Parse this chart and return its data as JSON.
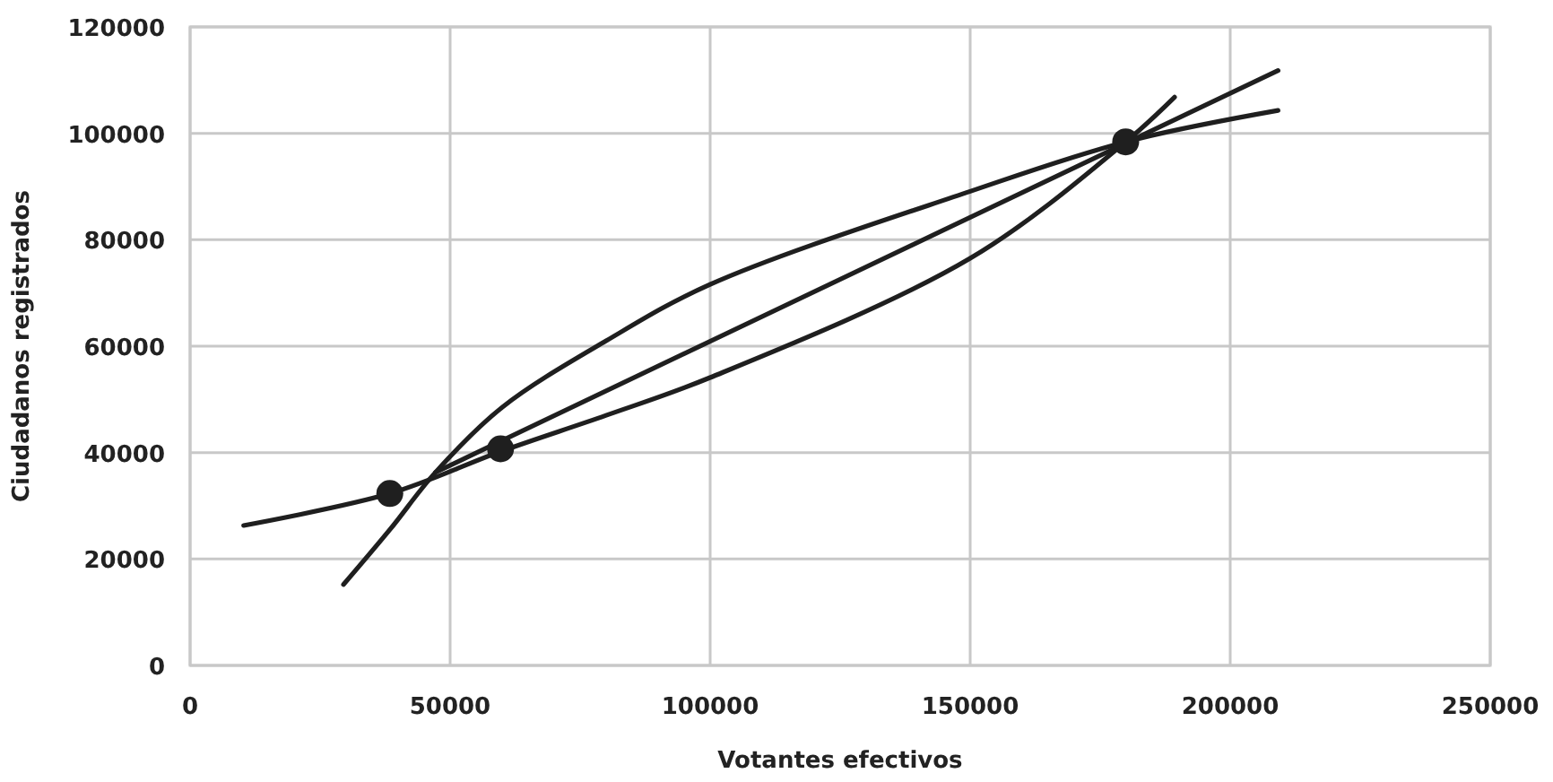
{
  "chart_data": {
    "type": "line",
    "xlabel": "Votantes efectivos",
    "ylabel": "Ciudadanos registrados",
    "xlim": [
      0,
      250000
    ],
    "ylim": [
      0,
      120000
    ],
    "xticks": [
      0,
      50000,
      100000,
      150000,
      200000,
      250000
    ],
    "yticks": [
      0,
      20000,
      40000,
      60000,
      80000,
      100000,
      120000
    ],
    "grid": true,
    "marker": "none",
    "line_style": "solid",
    "series": [
      {
        "color": "#1f1f1f",
        "x": [
          10300,
          38400,
          59700,
          80000,
          100000,
          150000,
          179900,
          189300
        ],
        "values": [
          26300,
          32300,
          40200,
          47000,
          54100,
          76500,
          98400,
          106800
        ]
      },
      {
        "color": "#1f1f1f",
        "x": [
          29500,
          38400,
          47200,
          60000,
          80000,
          100000,
          150000,
          179900,
          209200
        ],
        "values": [
          15200,
          25500,
          36300,
          48500,
          61000,
          71600,
          89100,
          98400,
          104300
        ]
      },
      {
        "color": "#1f1f1f",
        "x": [
          47200,
          209200
        ],
        "values": [
          36300,
          111800
        ]
      },
      {
        "type": "scatter",
        "color": "#1f1f1f",
        "marker": "circle",
        "x": [
          38400,
          59700,
          179900
        ],
        "values": [
          32300,
          40700,
          98400
        ]
      }
    ]
  }
}
